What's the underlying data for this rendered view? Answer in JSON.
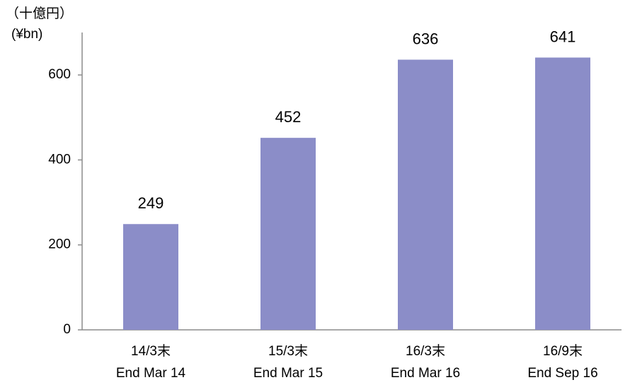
{
  "chart_data": {
    "type": "bar",
    "y_label": [
      "（十億円）",
      "(¥bn)"
    ],
    "categories": [
      [
        "14/3末",
        "End Mar 14"
      ],
      [
        "15/3末",
        "End Mar 15"
      ],
      [
        "16/3末",
        "End Mar 16"
      ],
      [
        "16/9末",
        "End Sep 16"
      ]
    ],
    "values": [
      249,
      452,
      636,
      641
    ],
    "color": "#8b8dc8",
    "ylim": [
      0,
      700
    ],
    "yticks": [
      0,
      200,
      400,
      600
    ],
    "grid": false
  }
}
